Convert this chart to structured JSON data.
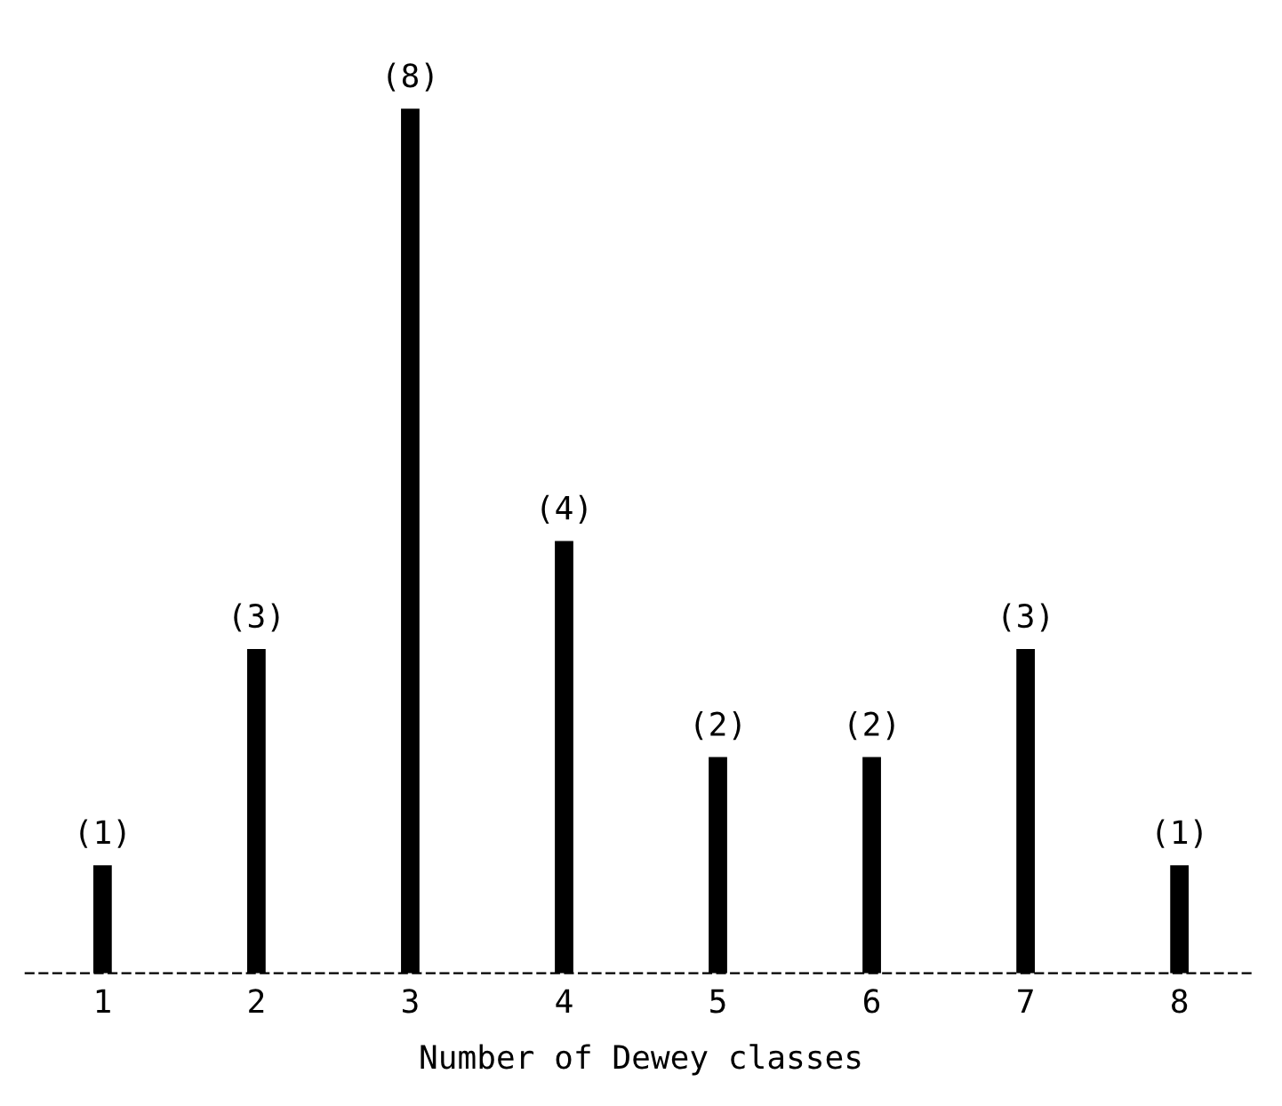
{
  "chart_data": {
    "type": "bar",
    "xlabel": "Number of Dewey classes",
    "categories": [
      "1",
      "2",
      "3",
      "4",
      "5",
      "6",
      "7",
      "8"
    ],
    "values": [
      1,
      3,
      8,
      4,
      2,
      2,
      3,
      1
    ],
    "value_labels": [
      "(1)",
      "(3)",
      "(8)",
      "(4)",
      "(2)",
      "(2)",
      "(3)",
      "(1)"
    ],
    "color": "#000000",
    "grid": false,
    "legend": false
  }
}
